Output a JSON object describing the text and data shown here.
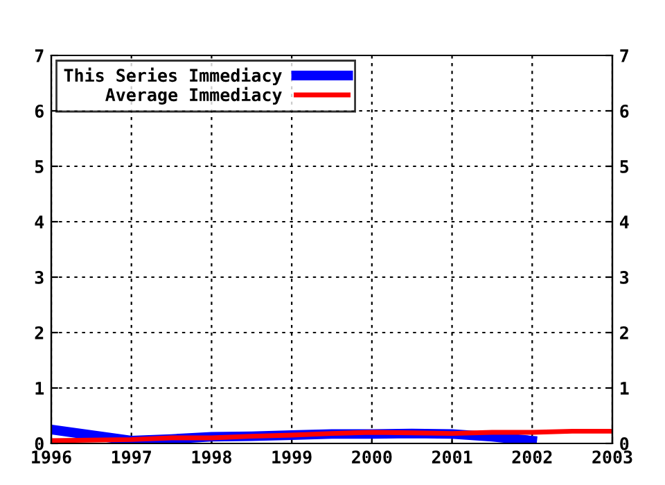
{
  "chart_data": {
    "type": "line",
    "series": [
      {
        "name": "This Series Immediacy",
        "color": "#0000ff",
        "x": [
          1996,
          1996.5,
          1997,
          1997.5,
          1998,
          1998.5,
          1999,
          1999.5,
          2000,
          2000.5,
          2001,
          2001.5,
          2002
        ],
        "values": [
          0.25,
          0.15,
          0.05,
          0.08,
          0.12,
          0.13,
          0.15,
          0.17,
          0.17,
          0.18,
          0.17,
          0.12,
          0.05
        ]
      },
      {
        "name": "Average Immediacy",
        "color": "#ff0000",
        "x": [
          1996,
          1997,
          1997.5,
          1998,
          1998.5,
          1999,
          1999.5,
          2000,
          2000.5,
          2001,
          2001.5,
          2002,
          2002.5,
          2003
        ],
        "values": [
          0.05,
          0.07,
          0.1,
          0.1,
          0.13,
          0.15,
          0.18,
          0.2,
          0.19,
          0.18,
          0.2,
          0.2,
          0.22,
          0.22
        ]
      }
    ],
    "xlim": [
      1996,
      2003
    ],
    "xticks": [
      1996,
      1997,
      1998,
      1999,
      2000,
      2001,
      2002,
      2003
    ],
    "ylim": [
      0,
      7
    ],
    "yticks": [
      0,
      1,
      2,
      3,
      4,
      5,
      6,
      7
    ],
    "y2lim": [
      0,
      7
    ],
    "y2ticks": [
      0,
      1,
      2,
      3,
      4,
      5,
      6,
      7
    ],
    "grid": true,
    "legend": "top left",
    "line_style": "solid",
    "marker": "none"
  }
}
